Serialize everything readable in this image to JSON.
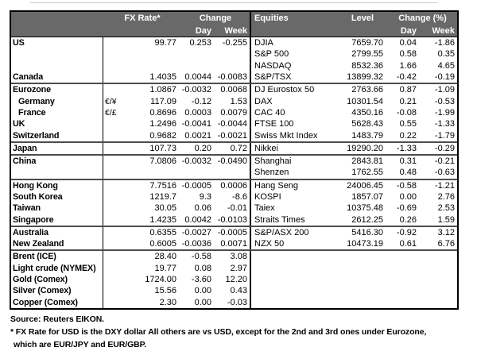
{
  "colors": {
    "header_bg": "#696969",
    "header_text": "#ffffff",
    "border": "#000000",
    "separator": "#4d4d4d"
  },
  "header": {
    "fx": {
      "rate": "FX Rate*",
      "change": "Change",
      "day": "Day",
      "week": "Week"
    },
    "eq": {
      "title": "Equities",
      "level": "Level",
      "change": "Change (%)",
      "day": "Day",
      "week": "Week"
    }
  },
  "rows": [
    {
      "name": "US",
      "sym": "",
      "fx": "99.77",
      "fx_day": "0.253",
      "fx_week": "-0.255",
      "eq": "DJIA",
      "level": "7659.70",
      "eq_day": "0.04",
      "eq_week": "-1.86",
      "indent": false,
      "sep": false
    },
    {
      "name": "",
      "sym": "",
      "fx": "",
      "fx_day": "",
      "fx_week": "",
      "eq": "S&P 500",
      "level": "2799.55",
      "eq_day": "0.58",
      "eq_week": "0.35",
      "indent": false,
      "sep": false
    },
    {
      "name": "",
      "sym": "",
      "fx": "",
      "fx_day": "",
      "fx_week": "",
      "eq": "NASDAQ",
      "level": "8532.36",
      "eq_day": "1.66",
      "eq_week": "4.65",
      "indent": false,
      "sep": false
    },
    {
      "name": "Canada",
      "sym": "",
      "fx": "1.4035",
      "fx_day": "0.0044",
      "fx_week": "-0.0083",
      "eq": "S&P/TSX",
      "level": "13899.32",
      "eq_day": "-0.42",
      "eq_week": "-0.19",
      "indent": false,
      "sep": false
    },
    {
      "name": "Eurozone",
      "sym": "",
      "fx": "1.0867",
      "fx_day": "-0.0032",
      "fx_week": "0.0068",
      "eq": "DJ Eurostox 50",
      "level": "2763.66",
      "eq_day": "0.87",
      "eq_week": "-1.09",
      "indent": false,
      "sep": true
    },
    {
      "name": "Germany",
      "sym": "€/¥",
      "fx": "117.09",
      "fx_day": "-0.12",
      "fx_week": "1.53",
      "eq": "DAX",
      "level": "10301.54",
      "eq_day": "0.21",
      "eq_week": "-0.53",
      "indent": true,
      "sep": false
    },
    {
      "name": "France",
      "sym": "€/£",
      "fx": "0.8696",
      "fx_day": "0.0003",
      "fx_week": "0.0079",
      "eq": "CAC 40",
      "level": "4350.16",
      "eq_day": "-0.08",
      "eq_week": "-1.99",
      "indent": true,
      "sep": false
    },
    {
      "name": "UK",
      "sym": "",
      "fx": "1.2496",
      "fx_day": "-0.0041",
      "fx_week": "-0.0044",
      "eq": "FTSE 100",
      "level": "5628.43",
      "eq_day": "0.55",
      "eq_week": "-1.33",
      "indent": false,
      "sep": false
    },
    {
      "name": "Switzerland",
      "sym": "",
      "fx": "0.9682",
      "fx_day": "0.0021",
      "fx_week": "-0.0021",
      "eq": "Swiss Mkt Index",
      "level": "1483.79",
      "eq_day": "0.22",
      "eq_week": "-1.79",
      "indent": false,
      "sep": false
    },
    {
      "name": "Japan",
      "sym": "",
      "fx": "107.73",
      "fx_day": "0.20",
      "fx_week": "0.72",
      "eq": "Nikkei",
      "level": "19290.20",
      "eq_day": "-1.33",
      "eq_week": "-0.29",
      "indent": false,
      "sep": true
    },
    {
      "name": "China",
      "sym": "",
      "fx": "7.0806",
      "fx_day": "-0.0032",
      "fx_week": "-0.0490",
      "eq": "Shanghai",
      "level": "2843.81",
      "eq_day": "0.31",
      "eq_week": "-0.21",
      "indent": false,
      "sep": true
    },
    {
      "name": "",
      "sym": "",
      "fx": "",
      "fx_day": "",
      "fx_week": "",
      "eq": "Shenzen",
      "level": "1762.55",
      "eq_day": "0.48",
      "eq_week": "-0.63",
      "indent": false,
      "sep": false
    },
    {
      "name": "Hong Kong",
      "sym": "",
      "fx": "7.7516",
      "fx_day": "-0.0005",
      "fx_week": "0.0006",
      "eq": "Hang Seng",
      "level": "24006.45",
      "eq_day": "-0.58",
      "eq_week": "-1.21",
      "indent": false,
      "sep": true
    },
    {
      "name": "South Korea",
      "sym": "",
      "fx": "1219.7",
      "fx_day": "9.3",
      "fx_week": "-8.6",
      "eq": "KOSPI",
      "level": "1857.07",
      "eq_day": "0.00",
      "eq_week": "2.76",
      "indent": false,
      "sep": false
    },
    {
      "name": "Taiwan",
      "sym": "",
      "fx": "30.05",
      "fx_day": "0.06",
      "fx_week": "-0.01",
      "eq": "Taiex",
      "level": "10375.48",
      "eq_day": "-0.69",
      "eq_week": "2.53",
      "indent": false,
      "sep": false
    },
    {
      "name": "Singapore",
      "sym": "",
      "fx": "1.4235",
      "fx_day": "0.0042",
      "fx_week": "-0.0103",
      "eq": "Straits Times",
      "level": "2612.25",
      "eq_day": "0.26",
      "eq_week": "1.59",
      "indent": false,
      "sep": false
    },
    {
      "name": "Australia",
      "sym": "",
      "fx": "0.6355",
      "fx_day": "-0.0027",
      "fx_week": "-0.0005",
      "eq": "S&P/ASX 200",
      "level": "5416.30",
      "eq_day": "-0.92",
      "eq_week": "3.12",
      "indent": false,
      "sep": true
    },
    {
      "name": "New Zealand",
      "sym": "",
      "fx": "0.6005",
      "fx_day": "-0.0036",
      "fx_week": "0.0071",
      "eq": "NZX 50",
      "level": "10473.19",
      "eq_day": "0.61",
      "eq_week": "6.76",
      "indent": false,
      "sep": false
    },
    {
      "name": "Brent (ICE)",
      "sym": "",
      "fx": "28.40",
      "fx_day": "-0.58",
      "fx_week": "3.08",
      "eq": "",
      "level": "",
      "eq_day": "",
      "eq_week": "",
      "indent": false,
      "sep": true
    },
    {
      "name": "Light crude (NYMEX)",
      "sym": "",
      "fx": "19.77",
      "fx_day": "0.08",
      "fx_week": "2.97",
      "eq": "",
      "level": "",
      "eq_day": "",
      "eq_week": "",
      "indent": false,
      "sep": false
    },
    {
      "name": "Gold (Comex)",
      "sym": "",
      "fx": "1724.00",
      "fx_day": "-3.60",
      "fx_week": "12.20",
      "eq": "",
      "level": "",
      "eq_day": "",
      "eq_week": "",
      "indent": false,
      "sep": false
    },
    {
      "name": "Silver (Comex)",
      "sym": "",
      "fx": "15.56",
      "fx_day": "0.00",
      "fx_week": "0.43",
      "eq": "",
      "level": "",
      "eq_day": "",
      "eq_week": "",
      "indent": false,
      "sep": false
    },
    {
      "name": "Copper (Comex)",
      "sym": "",
      "fx": "2.30",
      "fx_day": "0.00",
      "fx_week": "-0.03",
      "eq": "",
      "level": "",
      "eq_day": "",
      "eq_week": "",
      "indent": false,
      "sep": false
    }
  ],
  "footer": {
    "source": "Source:  Reuters EIKON.",
    "footnote_line1": "* FX Rate for USD is the DXY dollar  All others are vs USD, except for the 2nd and 3rd ones under Eurozone,",
    "footnote_line2": "which are EUR/JPY and EUR/GBP."
  }
}
